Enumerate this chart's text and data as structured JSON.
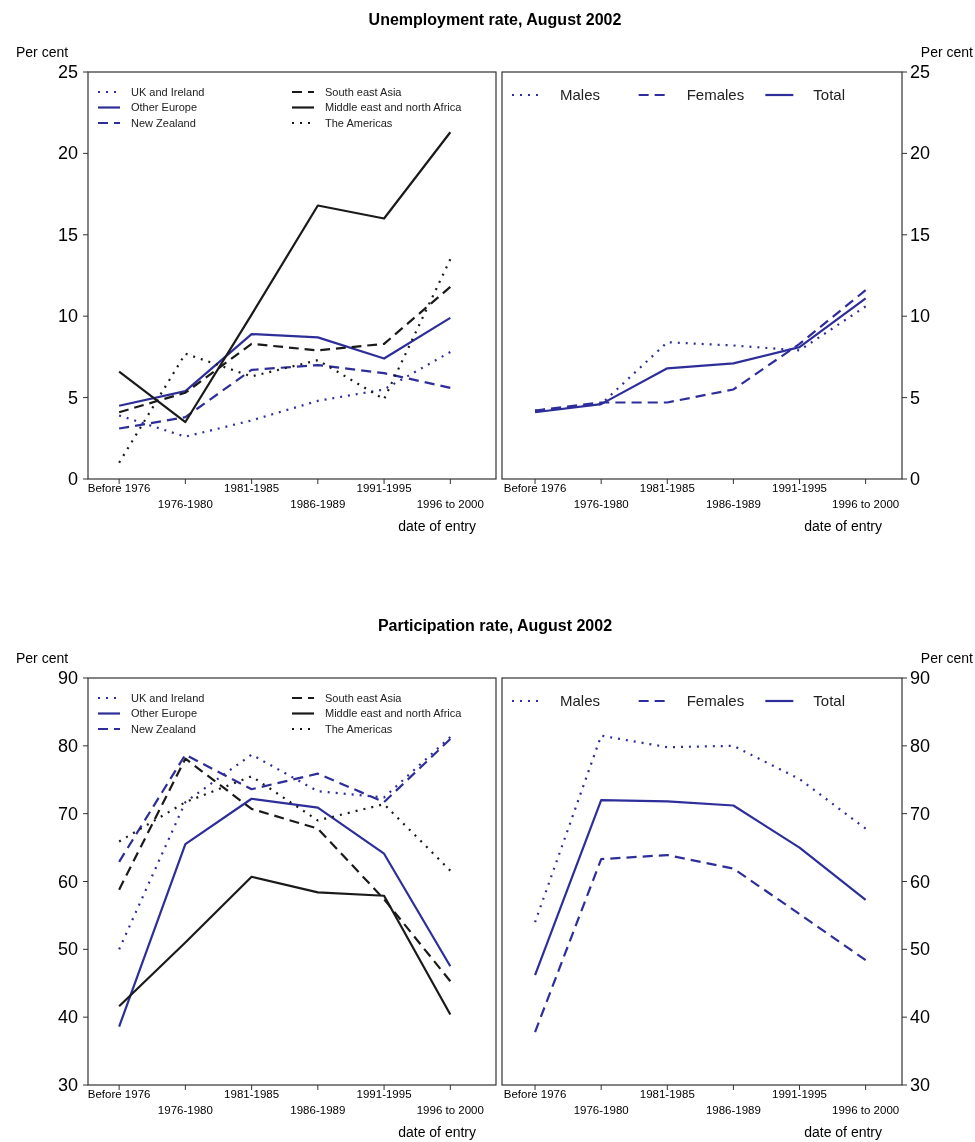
{
  "chart_data": [
    {
      "type": "line",
      "title": "Unemployment rate, August 2002",
      "ylabel": "Per cent",
      "xlabel": "date of entry",
      "categories": [
        "Before 1976",
        "1976-1980",
        "1981-1985",
        "1986-1989",
        "1991-1995",
        "1996 to 2000"
      ],
      "ylim": [
        0,
        25
      ],
      "yticks": [
        0,
        5,
        10,
        15,
        20,
        25
      ],
      "legend": "top left",
      "grid": false,
      "series": [
        {
          "name": "UK and Ireland",
          "color": "#2e2e9a",
          "line_style": "dotted",
          "values": [
            3.9,
            2.6,
            3.6,
            4.8,
            5.5,
            7.8
          ]
        },
        {
          "name": "Other Europe",
          "color": "#2e2e9a",
          "line_style": "solid",
          "values": [
            4.5,
            5.4,
            8.9,
            8.7,
            7.4,
            9.9
          ]
        },
        {
          "name": "New Zealand",
          "color": "#2e2e9a",
          "line_style": "dashed",
          "values": [
            3.1,
            3.8,
            6.7,
            7.0,
            6.5,
            5.6
          ]
        },
        {
          "name": "South east Asia",
          "color": "#1a1a1a",
          "line_style": "dashed",
          "values": [
            4.1,
            5.3,
            8.3,
            7.9,
            8.3,
            11.8
          ]
        },
        {
          "name": "Middle east and north Africa",
          "color": "#1a1a1a",
          "line_style": "solid",
          "values": [
            6.6,
            3.5,
            10.1,
            16.8,
            16.0,
            21.3
          ]
        },
        {
          "name": "The Americas",
          "color": "#1a1a1a",
          "line_style": "dotted",
          "values": [
            1.0,
            7.7,
            6.3,
            7.3,
            4.9,
            13.5
          ]
        }
      ]
    },
    {
      "type": "line",
      "ylabel": "Per cent",
      "xlabel": "date of entry",
      "categories": [
        "Before 1976",
        "1976-1980",
        "1981-1985",
        "1986-1989",
        "1991-1995",
        "1996 to 2000"
      ],
      "ylim": [
        0,
        25
      ],
      "yticks": [
        0,
        5,
        10,
        15,
        20,
        25
      ],
      "legend": "top",
      "grid": false,
      "series": [
        {
          "name": "Males",
          "color": "#2e2e9a",
          "line_style": "dotted",
          "values": [
            4.2,
            4.6,
            8.4,
            8.2,
            7.9,
            10.6
          ]
        },
        {
          "name": "Females",
          "color": "#2e2e9a",
          "line_style": "dashed",
          "values": [
            4.2,
            4.7,
            4.7,
            5.5,
            8.3,
            11.6
          ]
        },
        {
          "name": "Total",
          "color": "#2e2e9a",
          "line_style": "solid",
          "values": [
            4.1,
            4.6,
            6.8,
            7.1,
            8.1,
            11.1
          ]
        }
      ]
    },
    {
      "type": "line",
      "title": "Participation rate, August 2002",
      "ylabel": "Per cent",
      "xlabel": "date of entry",
      "categories": [
        "Before 1976",
        "1976-1980",
        "1981-1985",
        "1986-1989",
        "1991-1995",
        "1996 to 2000"
      ],
      "ylim": [
        30,
        90
      ],
      "yticks": [
        30,
        40,
        50,
        60,
        70,
        80,
        90
      ],
      "legend": "top left",
      "grid": false,
      "series": [
        {
          "name": "UK and Ireland",
          "color": "#2e2e9a",
          "line_style": "dotted",
          "values": [
            50.0,
            71.7,
            78.7,
            73.3,
            72.4,
            81.3
          ]
        },
        {
          "name": "Other Europe",
          "color": "#2e2e9a",
          "line_style": "solid",
          "values": [
            38.6,
            65.5,
            72.2,
            70.9,
            64.1,
            47.5
          ]
        },
        {
          "name": "New Zealand",
          "color": "#2e2e9a",
          "line_style": "dashed",
          "values": [
            62.9,
            78.7,
            73.6,
            75.9,
            71.7,
            81.0
          ]
        },
        {
          "name": "South east Asia",
          "color": "#1a1a1a",
          "line_style": "dashed",
          "values": [
            58.8,
            78.1,
            70.7,
            67.8,
            57.4,
            45.3
          ]
        },
        {
          "name": "Middle east and north Africa",
          "color": "#1a1a1a",
          "line_style": "solid",
          "values": [
            41.6,
            51.0,
            60.7,
            58.4,
            57.9,
            40.4
          ]
        },
        {
          "name": "The Americas",
          "color": "#1a1a1a",
          "line_style": "dotted",
          "values": [
            65.9,
            71.7,
            75.5,
            69.0,
            71.4,
            61.6
          ]
        }
      ]
    },
    {
      "type": "line",
      "ylabel": "Per cent",
      "xlabel": "date of entry",
      "categories": [
        "Before 1976",
        "1976-1980",
        "1981-1985",
        "1986-1989",
        "1991-1995",
        "1996 to 2000"
      ],
      "ylim": [
        30,
        90
      ],
      "yticks": [
        30,
        40,
        50,
        60,
        70,
        80,
        90
      ],
      "legend": "top",
      "grid": false,
      "series": [
        {
          "name": "Males",
          "color": "#2e2e9a",
          "line_style": "dotted",
          "values": [
            54.0,
            81.5,
            79.8,
            80.0,
            75.1,
            67.8
          ]
        },
        {
          "name": "Females",
          "color": "#2e2e9a",
          "line_style": "dashed",
          "values": [
            37.8,
            63.3,
            63.9,
            61.9,
            55.2,
            48.4
          ]
        },
        {
          "name": "Total",
          "color": "#2e2e9a",
          "line_style": "solid",
          "values": [
            46.2,
            72.0,
            71.8,
            71.2,
            65.0,
            57.3
          ]
        }
      ]
    }
  ]
}
